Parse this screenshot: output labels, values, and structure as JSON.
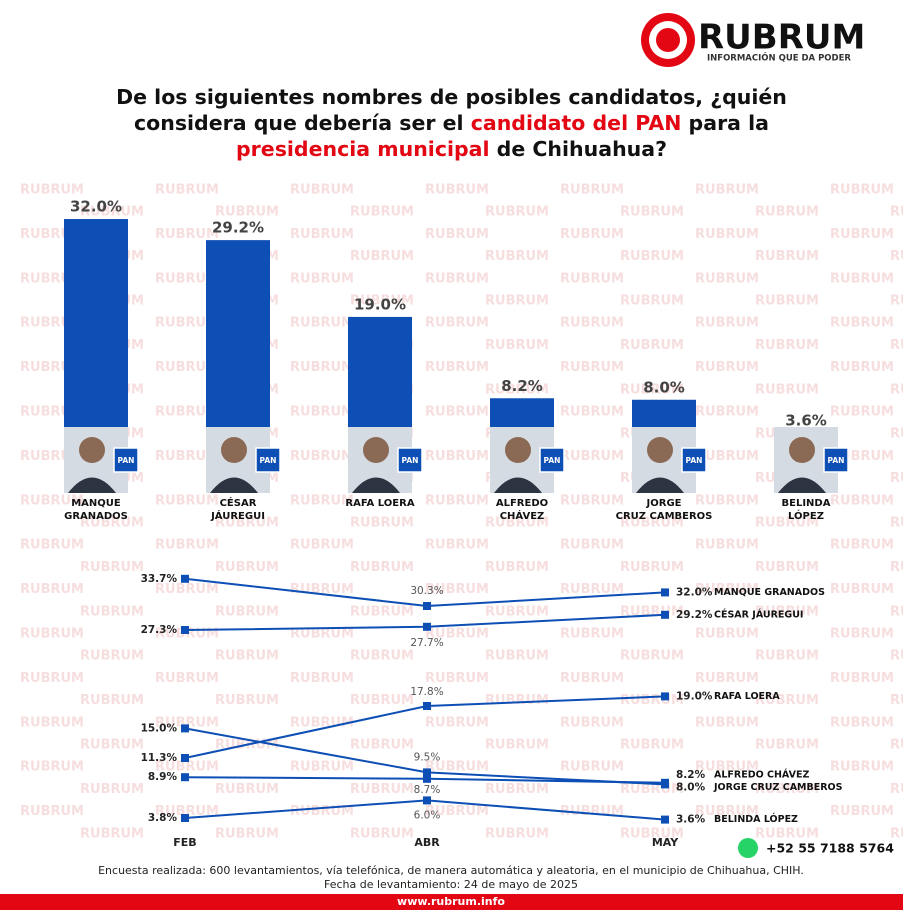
{
  "header": {
    "brand": "RUBRUM",
    "tagline": "INFORMACIÓN QUE DA PODER"
  },
  "watermark": "RUBRUM",
  "title": [
    {
      "text": "De los siguientes nombres de posibles candidatos, ¿quién considera que debería ser el ",
      "color": "#111111"
    },
    {
      "text": "candidato del PAN",
      "color": "#e30613"
    },
    {
      "text": " para la ",
      "color": "#111111"
    },
    {
      "text": "presidencia municipal",
      "color": "#e30613"
    },
    {
      "text": " de Chihuahua?",
      "color": "#111111"
    }
  ],
  "badge": "PAN",
  "chart_data": [
    {
      "type": "bar",
      "categories": [
        "MANQUE\nGRANADOS",
        "CÉSAR\nJÁUREGUI",
        "RAFA LOERA",
        "ALFREDO\nCHÁVEZ",
        "JORGE\nCRUZ CAMBEROS",
        "BELINDA\nLÓPEZ"
      ],
      "values": [
        32.0,
        29.2,
        19.0,
        8.2,
        8.0,
        3.6
      ],
      "value_labels": [
        "32.0%",
        "29.2%",
        "19.0%",
        "8.2%",
        "8.0%",
        "3.6%"
      ],
      "color": "#0d4fb5"
    },
    {
      "type": "line",
      "x": [
        "FEB",
        "ABR",
        "MAY"
      ],
      "series": [
        {
          "name": "MANQUE GRANADOS",
          "color": "#0d4fb5",
          "values": [
            33.7,
            30.3,
            32.0
          ],
          "value_labels": [
            "33.7%",
            "30.3%",
            "32.0%"
          ]
        },
        {
          "name": "CÉSAR JÁUREGUI",
          "color": "#0d4fb5",
          "values": [
            27.3,
            27.7,
            29.2
          ],
          "value_labels": [
            "27.3%",
            "27.7%",
            "29.2%"
          ]
        },
        {
          "name": "RAFA LOERA",
          "color": "#0d4fb5",
          "values": [
            11.3,
            17.8,
            19.0
          ],
          "value_labels": [
            "11.3%",
            "17.8%",
            "19.0%"
          ]
        },
        {
          "name": "ALFREDO CHÁVEZ",
          "color": "#0d4fb5",
          "values": [
            8.9,
            8.7,
            8.2
          ],
          "value_labels": [
            "8.9%",
            "8.7%",
            "8.2%"
          ]
        },
        {
          "name": "JORGE CRUZ CAMBEROS",
          "color": "#0d4fb5",
          "values": [
            15.0,
            9.5,
            8.0
          ],
          "value_labels": [
            "15.0%",
            "9.5%",
            "8.0%"
          ]
        },
        {
          "name": "BELINDA LÓPEZ",
          "color": "#0d4fb5",
          "values": [
            3.8,
            6.0,
            3.6
          ],
          "value_labels": [
            "3.8%",
            "6.0%",
            "3.6%"
          ]
        }
      ]
    }
  ],
  "footer": {
    "note": "Encuesta realizada: 600 levantamientos, vía telefónica, de manera automática y aleatoria, en el municipio de Chihuahua, CHIH.",
    "date": "Fecha de levantamiento: 24 de mayo de 2025",
    "phone": "+52 55 7188 5764",
    "url": "www.rubrum.info"
  }
}
